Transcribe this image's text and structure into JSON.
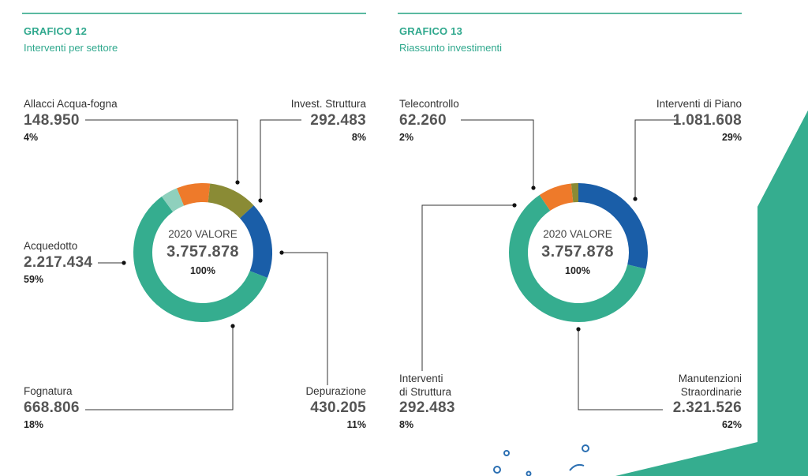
{
  "colors": {
    "teal": "#35ad8f",
    "light_teal": "#8fd0bd",
    "orange": "#ee7a2a",
    "olive": "#8a8b35",
    "blue": "#1a5ea8",
    "title": "#2fa88d"
  },
  "chart_data": [
    {
      "type": "pie",
      "variant": "donut",
      "title": "GRAFICO 12",
      "subtitle": "Interventi per settore",
      "center": {
        "year_label": "2020 VALORE",
        "value": "3.757.878",
        "percent": "100%"
      },
      "slices": [
        {
          "label": "Allacci Acqua-fogna",
          "value": 148950,
          "value_label": "148.950",
          "percent": "4%",
          "color": "#8fd0bd"
        },
        {
          "label": "Invest. Struttura",
          "value": 292483,
          "value_label": "292.483",
          "percent": "8%",
          "color": "#ee7a2a"
        },
        {
          "label": "Depurazione",
          "value": 430205,
          "value_label": "430.205",
          "percent": "11%",
          "color": "#8a8b35"
        },
        {
          "label": "Fognatura",
          "value": 668806,
          "value_label": "668.806",
          "percent": "18%",
          "color": "#1a5ea8"
        },
        {
          "label": "Acquedotto",
          "value": 2217434,
          "value_label": "2.217.434",
          "percent": "59%",
          "color": "#35ad8f"
        }
      ]
    },
    {
      "type": "pie",
      "variant": "donut",
      "title": "GRAFICO 13",
      "subtitle": "Riassunto investimenti",
      "center": {
        "year_label": "2020 VALORE",
        "value": "3.757.878",
        "percent": "100%"
      },
      "slices": [
        {
          "label": "Interventi di Piano",
          "value": 1081608,
          "value_label": "1.081.608",
          "percent": "29%",
          "color": "#1a5ea8"
        },
        {
          "label": "Manutenzioni Straordinarie",
          "label_lines": [
            "Manutenzioni",
            "Straordinarie"
          ],
          "value": 2321526,
          "value_label": "2.321.526",
          "percent": "62%",
          "color": "#35ad8f"
        },
        {
          "label": "Interventi di Struttura",
          "label_lines": [
            "Interventi",
            "di Struttura"
          ],
          "value": 292483,
          "value_label": "292.483",
          "percent": "8%",
          "color": "#ee7a2a"
        },
        {
          "label": "Telecontrollo",
          "value": 62260,
          "value_label": "62.260",
          "percent": "2%",
          "color": "#8a8b35"
        }
      ]
    }
  ]
}
